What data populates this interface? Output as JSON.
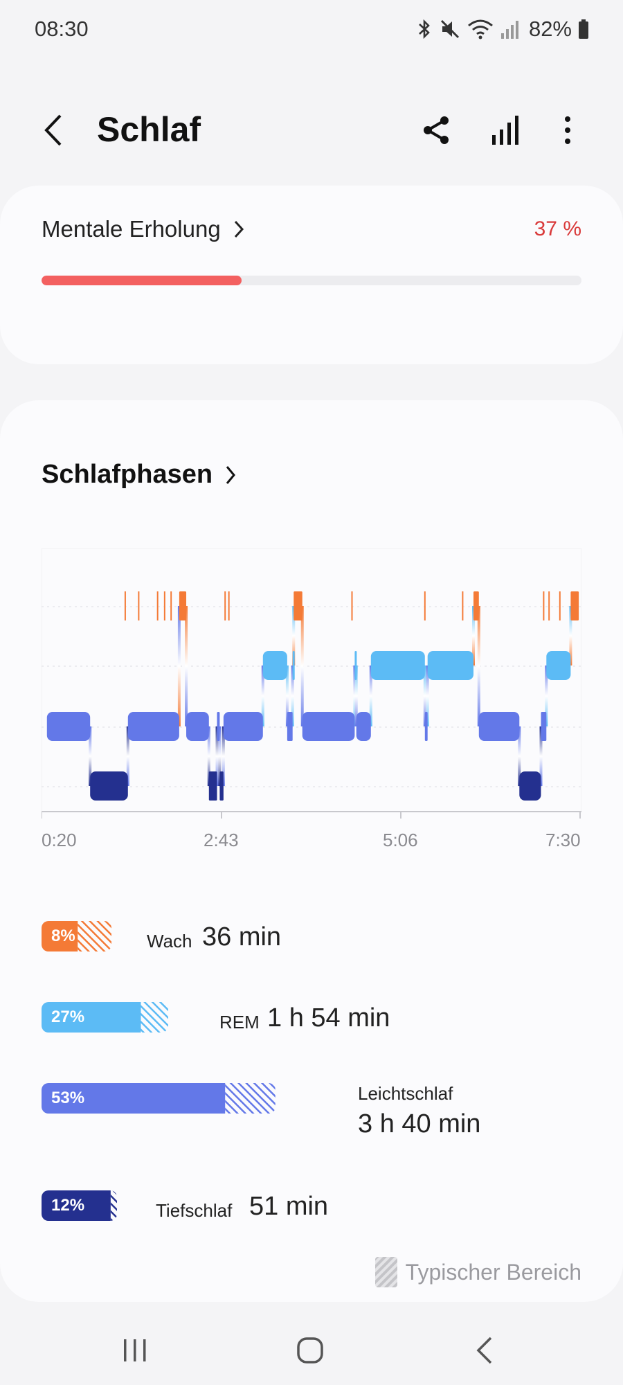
{
  "status_bar": {
    "time": "08:30",
    "battery": "82%",
    "icons": [
      "bluetooth-icon",
      "mute-icon",
      "wifi-icon",
      "signal-icon",
      "battery-icon"
    ]
  },
  "header": {
    "title": "Schlaf",
    "icons": [
      "back-icon",
      "share-icon",
      "stats-icon",
      "more-icon"
    ]
  },
  "mental_recovery": {
    "label": "Mentale Erholung",
    "value": "37 %",
    "progress": 0.37,
    "color": "#f36060"
  },
  "sleep_phases": {
    "title": "Schlafphasen",
    "x_ticks": [
      "0:20",
      "2:43",
      "5:06",
      "7:30"
    ],
    "stages": [
      {
        "key": "wake",
        "pct": "8%",
        "name": "Wach",
        "duration": "36 min",
        "color": "#f47a36",
        "fill": 0.067,
        "typical_end": 0.13
      },
      {
        "key": "rem",
        "pct": "27%",
        "name": "REM",
        "duration": "1 h 54 min",
        "color": "#5cbbf5",
        "fill": 0.184,
        "typical_end": 0.235
      },
      {
        "key": "light",
        "pct": "53%",
        "name": "Leichtschlaf",
        "duration": "3 h 40 min",
        "color": "#6378e8",
        "fill": 0.34,
        "typical_end": 0.433
      },
      {
        "key": "deep",
        "pct": "12%",
        "name": "Tiefschlaf",
        "duration": "51 min",
        "color": "#24308f",
        "fill": 0.128,
        "typical_end": 0.14
      }
    ],
    "legend": "Typischer Bereich"
  },
  "chart_data": {
    "type": "hypnogram",
    "x_range": [
      "0:20",
      "7:30"
    ],
    "levels": [
      "Wach",
      "REM",
      "Leichtschlaf",
      "Tiefschlaf"
    ],
    "segments": [
      {
        "stage": "Leichtschlaf",
        "start": 0.01,
        "end": 0.09
      },
      {
        "stage": "Tiefschlaf",
        "start": 0.09,
        "end": 0.16
      },
      {
        "stage": "Leichtschlaf",
        "start": 0.16,
        "end": 0.255
      },
      {
        "stage": "Wach",
        "start": 0.255,
        "end": 0.268
      },
      {
        "stage": "Leichtschlaf",
        "start": 0.268,
        "end": 0.31
      },
      {
        "stage": "Tiefschlaf",
        "start": 0.31,
        "end": 0.325
      },
      {
        "stage": "Leichtschlaf",
        "start": 0.325,
        "end": 0.33
      },
      {
        "stage": "Tiefschlaf",
        "start": 0.33,
        "end": 0.337
      },
      {
        "stage": "Leichtschlaf",
        "start": 0.337,
        "end": 0.41
      },
      {
        "stage": "REM",
        "start": 0.41,
        "end": 0.455
      },
      {
        "stage": "Leichtschlaf",
        "start": 0.455,
        "end": 0.465
      },
      {
        "stage": "REM",
        "start": 0.465,
        "end": 0.467
      },
      {
        "stage": "Wach",
        "start": 0.467,
        "end": 0.483
      },
      {
        "stage": "Leichtschlaf",
        "start": 0.483,
        "end": 0.58
      },
      {
        "stage": "REM",
        "start": 0.58,
        "end": 0.583
      },
      {
        "stage": "Leichtschlaf",
        "start": 0.583,
        "end": 0.61
      },
      {
        "stage": "REM",
        "start": 0.61,
        "end": 0.71
      },
      {
        "stage": "Leichtschlaf",
        "start": 0.71,
        "end": 0.715
      },
      {
        "stage": "REM",
        "start": 0.715,
        "end": 0.8
      },
      {
        "stage": "Wach",
        "start": 0.8,
        "end": 0.81
      },
      {
        "stage": "Leichtschlaf",
        "start": 0.81,
        "end": 0.885
      },
      {
        "stage": "Tiefschlaf",
        "start": 0.885,
        "end": 0.925
      },
      {
        "stage": "Leichtschlaf",
        "start": 0.925,
        "end": 0.935
      },
      {
        "stage": "REM",
        "start": 0.935,
        "end": 0.98
      },
      {
        "stage": "Wach",
        "start": 0.98,
        "end": 0.995
      }
    ],
    "wake_ticks": [
      0.155,
      0.18,
      0.215,
      0.228,
      0.24,
      0.34,
      0.347,
      0.575,
      0.71,
      0.78,
      0.93,
      0.94,
      0.96
    ]
  }
}
